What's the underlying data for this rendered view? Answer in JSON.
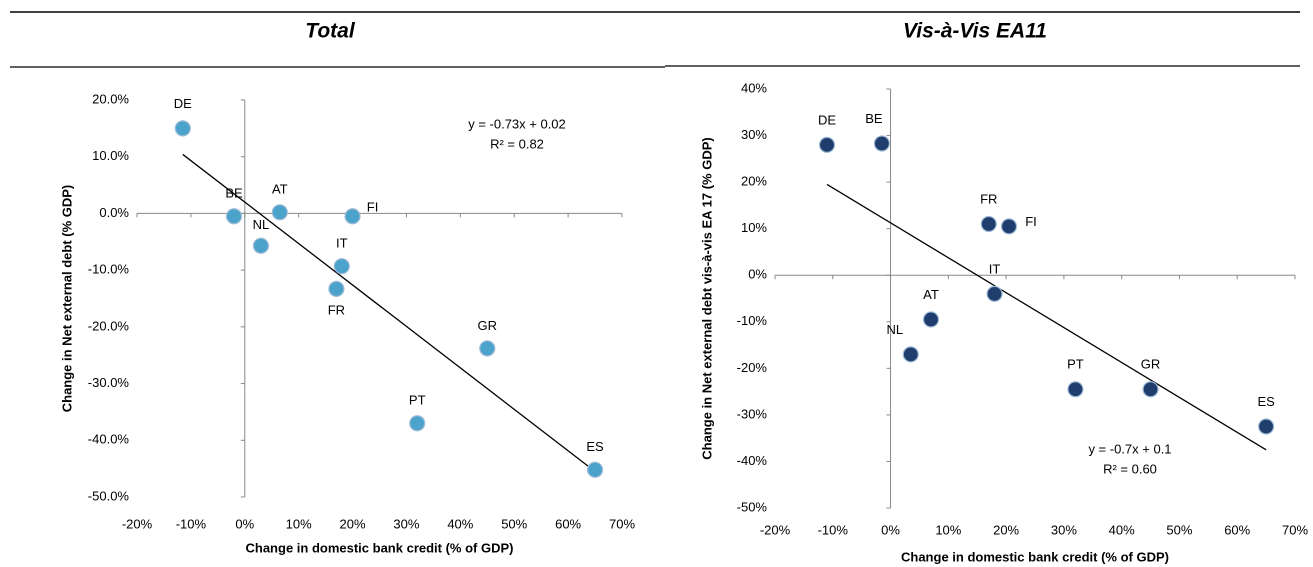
{
  "chart_data": [
    {
      "type": "scatter",
      "title": "Total",
      "x_label": "Change in domestic bank credit (% of GDP)",
      "y_label": "Change in Net external debt (% GDP)",
      "series": [
        {
          "name": "Total",
          "color": "#4ba3cc",
          "labels": [
            "DE",
            "BE",
            "AT",
            "FI",
            "NL",
            "IT",
            "FR",
            "GR",
            "PT",
            "ES"
          ],
          "x": [
            -11.5,
            -2,
            6.5,
            20,
            3,
            18,
            17,
            45,
            32,
            65
          ],
          "values": [
            15,
            -0.5,
            0.2,
            -0.5,
            -5.7,
            -9.3,
            -13.3,
            -23.8,
            -37,
            -45.2
          ]
        }
      ],
      "trendline": {
        "x": [
          -11.5,
          65
        ],
        "y": [
          10.4,
          -45.5
        ]
      },
      "annotations": [
        "y = -0.73x + 0.02",
        "R² = 0.82"
      ],
      "xlim": [
        -20,
        70
      ],
      "xticks": [
        {
          "value": -20,
          "label": "-20%"
        },
        {
          "value": -10,
          "label": "-10%"
        },
        {
          "value": 0,
          "label": "0%"
        },
        {
          "value": 10,
          "label": "10%"
        },
        {
          "value": 20,
          "label": "20%"
        },
        {
          "value": 30,
          "label": "30%"
        },
        {
          "value": 40,
          "label": "40%"
        },
        {
          "value": 50,
          "label": "50%"
        },
        {
          "value": 60,
          "label": "60%"
        },
        {
          "value": 70,
          "label": "70%"
        }
      ],
      "ylim": [
        -50,
        20
      ],
      "yticks": [
        {
          "value": -50,
          "label": "-50.0%"
        },
        {
          "value": -40,
          "label": "-40.0%"
        },
        {
          "value": -30,
          "label": "-30.0%"
        },
        {
          "value": -20,
          "label": "-20.0%"
        },
        {
          "value": -10,
          "label": "-10.0%"
        },
        {
          "value": 0,
          "label": "0.0%"
        },
        {
          "value": 10,
          "label": "10.0%"
        },
        {
          "value": 20,
          "label": "20.0%"
        }
      ]
    },
    {
      "type": "scatter",
      "title": "Vis-à-Vis EA11",
      "x_label": "Change in domestic bank credit (% of GDP)",
      "y_label": "Change in Net external debt vis-à-vis EA 17 (% GDP)",
      "series": [
        {
          "name": "Vis-à-Vis EA11",
          "color": "#1f3e6e",
          "labels": [
            "DE",
            "BE",
            "FR",
            "FI",
            "IT",
            "AT",
            "NL",
            "PT",
            "GR",
            "ES"
          ],
          "x": [
            -11,
            -1.5,
            17,
            20.5,
            18,
            7,
            3.5,
            32,
            45,
            65
          ],
          "values": [
            28,
            28.3,
            11,
            10.5,
            -4,
            -9.5,
            -17,
            -24.5,
            -24.5,
            -32.5
          ]
        }
      ],
      "trendline": {
        "x": [
          -11,
          65
        ],
        "y": [
          19.5,
          -37.5
        ]
      },
      "annotations": [
        "y = -0.7x + 0.1",
        "R² = 0.60"
      ],
      "xlim": [
        -20,
        70
      ],
      "xticks": [
        {
          "value": -20,
          "label": "-20%"
        },
        {
          "value": -10,
          "label": "-10%"
        },
        {
          "value": 0,
          "label": "0%"
        },
        {
          "value": 10,
          "label": "10%"
        },
        {
          "value": 20,
          "label": "20%"
        },
        {
          "value": 30,
          "label": "30%"
        },
        {
          "value": 40,
          "label": "40%"
        },
        {
          "value": 50,
          "label": "50%"
        },
        {
          "value": 60,
          "label": "60%"
        },
        {
          "value": 70,
          "label": "70%"
        }
      ],
      "ylim": [
        -50,
        40
      ],
      "yticks": [
        {
          "value": -50,
          "label": "-50%"
        },
        {
          "value": -40,
          "label": "-40%"
        },
        {
          "value": -30,
          "label": "-30%"
        },
        {
          "value": -20,
          "label": "-20%"
        },
        {
          "value": -10,
          "label": "-10%"
        },
        {
          "value": 0,
          "label": "0%"
        },
        {
          "value": 10,
          "label": "10%"
        },
        {
          "value": 20,
          "label": "20%"
        },
        {
          "value": 30,
          "label": "30%"
        },
        {
          "value": 40,
          "label": "40%"
        }
      ]
    }
  ]
}
